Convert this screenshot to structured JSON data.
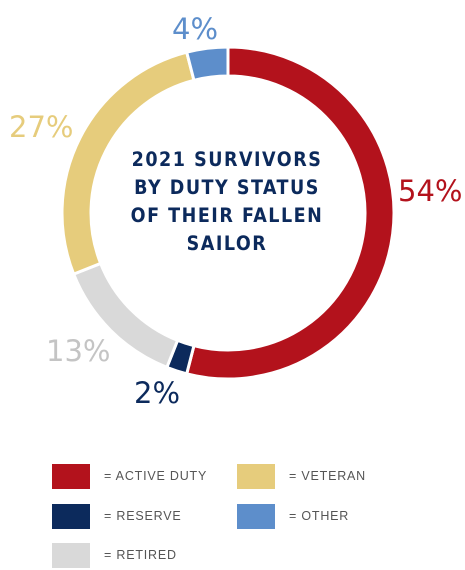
{
  "chart_data": {
    "type": "pie",
    "title": [
      "2021 SURVIVORS",
      "BY DUTY STATUS",
      "OF THEIR FALLEN",
      "SAILOR"
    ],
    "slices": [
      {
        "label": "ACTIVE DUTY",
        "value": 54,
        "display": "54%",
        "color": "#b3121c"
      },
      {
        "label": "RESERVE",
        "value": 2,
        "display": "2%",
        "color": "#0c2a5c"
      },
      {
        "label": "RETIRED",
        "value": 13,
        "display": "13%",
        "color": "#d9d9d9"
      },
      {
        "label": "VETERAN",
        "value": 27,
        "display": "27%",
        "color": "#e6cc7c"
      },
      {
        "label": "OTHER",
        "value": 4,
        "display": "4%",
        "color": "#5d8ecb"
      }
    ]
  },
  "legend": [
    {
      "text": "= ACTIVE DUTY",
      "color": "#b3121c"
    },
    {
      "text": "= VETERAN",
      "color": "#e6cc7c"
    },
    {
      "text": "= RESERVE",
      "color": "#0c2a5c"
    },
    {
      "text": "= OTHER",
      "color": "#5d8ecb"
    },
    {
      "text": "= RETIRED",
      "color": "#d9d9d9"
    }
  ],
  "label_colors": {
    "active": "#b3121c",
    "reserve": "#0c2a5c",
    "retired": "#c4c4c4",
    "veteran": "#e6cc7c",
    "other": "#5d8ecb"
  }
}
